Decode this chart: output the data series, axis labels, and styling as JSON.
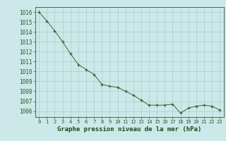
{
  "x": [
    0,
    1,
    2,
    3,
    4,
    5,
    6,
    7,
    8,
    9,
    10,
    11,
    12,
    13,
    14,
    15,
    16,
    17,
    18,
    19,
    20,
    21,
    22,
    23
  ],
  "y": [
    1016.0,
    1015.1,
    1014.1,
    1013.0,
    1011.8,
    1010.7,
    1010.2,
    1009.7,
    1008.7,
    1008.5,
    1008.4,
    1008.0,
    1007.6,
    1007.1,
    1006.6,
    1006.6,
    1006.6,
    1006.7,
    1005.8,
    1006.3,
    1006.5,
    1006.6,
    1006.5,
    1006.1
  ],
  "ylim": [
    1005.4,
    1016.5
  ],
  "xlim": [
    -0.5,
    23.5
  ],
  "yticks": [
    1006,
    1007,
    1008,
    1009,
    1010,
    1011,
    1012,
    1013,
    1014,
    1015,
    1016
  ],
  "xticks": [
    0,
    1,
    2,
    3,
    4,
    5,
    6,
    7,
    8,
    9,
    10,
    11,
    12,
    13,
    14,
    15,
    16,
    17,
    18,
    19,
    20,
    21,
    22,
    23
  ],
  "xlabel": "Graphe pression niveau de la mer (hPa)",
  "line_color": "#2d6b2d",
  "marker": "+",
  "bg_color": "#cce8e8",
  "grid_color": "#aacece",
  "tick_color": "#2d5a2d",
  "label_color": "#1a4a1a",
  "xlabel_fontsize": 6.5,
  "ytick_fontsize": 5.5,
  "xtick_fontsize": 5.0
}
